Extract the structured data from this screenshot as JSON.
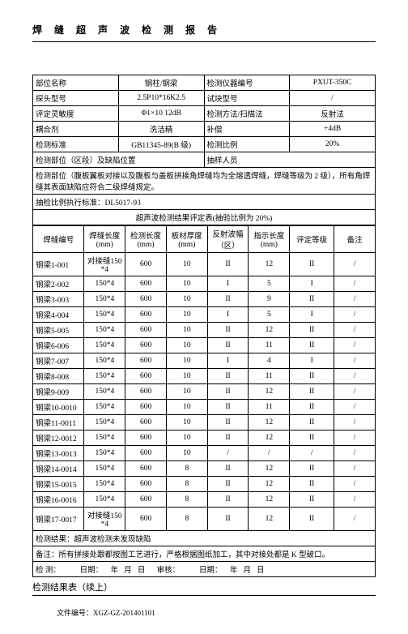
{
  "title": "焊 缝 超 声 波 检 测 报 告",
  "header_table": {
    "rows": [
      [
        "部位名称",
        "钢柱/钢梁",
        "检测仪器编号",
        "PXUT-350C"
      ],
      [
        "探头型号",
        "2.5P10*16K2.5",
        "试块型号",
        "/"
      ],
      [
        "评定灵敏度",
        "Φ1×10 12dB",
        "检测方法/扫描法",
        "反射法"
      ],
      [
        "耦合剂",
        "洗洁精",
        "补偿",
        "+4dB"
      ],
      [
        "检测标准",
        "GB11345-89(B 级)",
        "检测比例",
        "20%"
      ]
    ],
    "row6": [
      "检测部位（区段）及缺陷位置",
      "抽样人员"
    ],
    "note1": "检测部位（腹板翼板对接以及腹板与盖板拼接角焊缝均为全熔透焊缝，焊缝等级为 2 级），所有角焊缝其表面缺陷应符合二级焊缝规定。",
    "note2": "抽检比例执行标准：DL5017-93",
    "eval_title": "超声波检测结果评定表(抽验比例为 20%)"
  },
  "data_table": {
    "columns": [
      "焊缝编号",
      "焊缝长度(mm)",
      "检测长度(mm)",
      "板材厚度(mm)",
      "反射波幅（区）",
      "指示长度(mm)",
      "评定等级",
      "备注"
    ],
    "rows": [
      [
        "钢梁1-001",
        "对接缝150*4",
        "600",
        "10",
        "II",
        "12",
        "II",
        "/"
      ],
      [
        "钢梁2-002",
        "150*4",
        "600",
        "10",
        "I",
        "5",
        "I",
        "/"
      ],
      [
        "钢梁3-003",
        "150*4",
        "600",
        "10",
        "II",
        "9",
        "II",
        "/"
      ],
      [
        "钢梁4-004",
        "150*4",
        "600",
        "10",
        "I",
        "5",
        "I",
        "/"
      ],
      [
        "钢梁5-005",
        "150*4",
        "600",
        "10",
        "II",
        "12",
        "II",
        "/"
      ],
      [
        "钢梁6-006",
        "150*4",
        "600",
        "10",
        "II",
        "11",
        "II",
        "/"
      ],
      [
        "钢梁7-007",
        "150*4",
        "600",
        "10",
        "I",
        "4",
        "I",
        "/"
      ],
      [
        "钢梁8-008",
        "150*4",
        "600",
        "10",
        "II",
        "11",
        "II",
        "/"
      ],
      [
        "钢梁9-009",
        "150*4",
        "600",
        "10",
        "II",
        "12",
        "II",
        "/"
      ],
      [
        "钢梁10-0010",
        "150*4",
        "600",
        "10",
        "II",
        "11",
        "II",
        "/"
      ],
      [
        "钢梁11-0011",
        "150*4",
        "600",
        "10",
        "II",
        "12",
        "II",
        "/"
      ],
      [
        "钢梁12-0012",
        "150*4",
        "600",
        "10",
        "II",
        "12",
        "II",
        "/"
      ],
      [
        "钢梁13-0013",
        "150*4",
        "600",
        "10",
        "/",
        "/",
        "/",
        "/"
      ],
      [
        "钢梁14-0014",
        "150*4",
        "600",
        "8",
        "II",
        "12",
        "II",
        "/"
      ],
      [
        "钢梁15-0015",
        "150*4",
        "600",
        "8",
        "II",
        "12",
        "II",
        "/"
      ],
      [
        "钢梁16-0016",
        "150*4",
        "600",
        "8",
        "II",
        "12",
        "II",
        "/"
      ],
      [
        "钢梁17-0017",
        "对接缝150*4",
        "600",
        "8",
        "II",
        "12",
        "II",
        "/"
      ]
    ],
    "result": "检测结果：超声波检测未发现缺陷",
    "remark": "备注：所有拼接处跟都按图工艺进行，严格根据图纸加工，其中对接处都是 K 型破口。",
    "sign_row": "检 测：          日期：    年   月   日      审核：          日期：    年   月   日"
  },
  "continuation": "检测结果表（续上）",
  "doc_no": "文件编号：XGZ-GZ-201401101"
}
